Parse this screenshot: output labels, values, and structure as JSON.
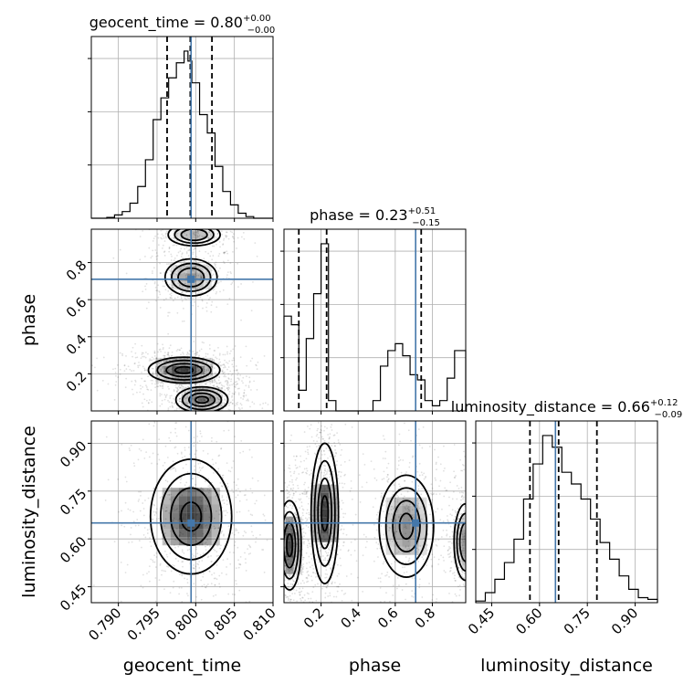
{
  "chart_data": {
    "type": "corner",
    "parameters": [
      "geocent_time",
      "phase",
      "luminosity_distance"
    ],
    "truths": {
      "geocent_time": 0.7994,
      "phase": 0.71,
      "luminosity_distance": 0.65
    },
    "titles": [
      {
        "param": "geocent_time",
        "main": "geocent_time = 0.80",
        "sup": "+0.00",
        "sub": "−0.00"
      },
      {
        "param": "phase",
        "main": "phase = 0.23",
        "sup": "+0.51",
        "sub": "−0.15"
      },
      {
        "param": "luminosity_distance",
        "main": "luminosity_distance = 0.66",
        "sup": "+0.12",
        "sub": "−0.09"
      }
    ],
    "axes": {
      "geocent_time": {
        "label": "geocent_time",
        "range": [
          0.7865,
          0.81
        ],
        "ticks": [
          0.79,
          0.795,
          0.8,
          0.805,
          0.81
        ],
        "tick_labels": [
          "0.790",
          "0.795",
          "0.800",
          "0.805",
          "0.810"
        ]
      },
      "phase": {
        "label": "phase",
        "range": [
          0.0,
          0.98
        ],
        "ticks": [
          0.2,
          0.4,
          0.6,
          0.8
        ],
        "tick_labels": [
          "0.2",
          "0.4",
          "0.6",
          "0.8"
        ]
      },
      "luminosity_distance": {
        "label": "luminosity_distance",
        "range": [
          0.4,
          0.97
        ],
        "ticks": [
          0.45,
          0.6,
          0.75,
          0.9
        ],
        "tick_labels": [
          "0.45",
          "0.60",
          "0.75",
          "0.90"
        ]
      }
    },
    "histograms": {
      "geocent_time": {
        "edges": [
          0.7865,
          0.7875,
          0.7885,
          0.7895,
          0.7905,
          0.7915,
          0.7925,
          0.7935,
          0.7945,
          0.7955,
          0.7965,
          0.7975,
          0.7985,
          0.799,
          0.7995,
          0.8005,
          0.8015,
          0.8025,
          0.8035,
          0.8045,
          0.8055,
          0.8065,
          0.8075,
          0.8085,
          0.81
        ],
        "counts": [
          0,
          0,
          0.005,
          0.02,
          0.04,
          0.09,
          0.19,
          0.35,
          0.59,
          0.72,
          0.84,
          0.93,
          1.0,
          0.94,
          0.81,
          0.62,
          0.51,
          0.31,
          0.16,
          0.08,
          0.03,
          0.01,
          0.0,
          0
        ],
        "quantiles": [
          0.7963,
          0.7993,
          0.8021
        ]
      },
      "phase": {
        "edges": [
          0.0,
          0.04,
          0.08,
          0.12,
          0.16,
          0.2,
          0.24,
          0.28,
          0.32,
          0.36,
          0.4,
          0.44,
          0.48,
          0.52,
          0.56,
          0.6,
          0.64,
          0.68,
          0.72,
          0.76,
          0.8,
          0.84,
          0.88,
          0.92,
          0.96,
          0.98
        ],
        "counts": [
          0.55,
          0.5,
          0.12,
          0.42,
          0.68,
          0.97,
          0.06,
          0.0,
          0.0,
          0.0,
          0.0,
          0.0,
          0.06,
          0.26,
          0.35,
          0.39,
          0.32,
          0.21,
          0.18,
          0.06,
          0.03,
          0.06,
          0.19,
          0.35,
          0.35
        ],
        "quantiles": [
          0.08,
          0.23,
          0.74
        ]
      },
      "luminosity_distance": {
        "edges": [
          0.4,
          0.43,
          0.46,
          0.49,
          0.52,
          0.55,
          0.58,
          0.61,
          0.64,
          0.67,
          0.7,
          0.73,
          0.76,
          0.79,
          0.82,
          0.85,
          0.88,
          0.91,
          0.94,
          0.97
        ],
        "counts": [
          0.01,
          0.06,
          0.14,
          0.24,
          0.38,
          0.62,
          0.83,
          1.0,
          0.93,
          0.78,
          0.71,
          0.62,
          0.5,
          0.36,
          0.26,
          0.16,
          0.08,
          0.03,
          0.02
        ],
        "quantiles": [
          0.57,
          0.66,
          0.78
        ]
      }
    },
    "density_blobs": [
      {
        "x": "geocent_time",
        "y": "phase",
        "cx": 0.7994,
        "cy": 0.72,
        "sx": 0.0016,
        "sy": 0.05,
        "w": 0.55
      },
      {
        "x": "geocent_time",
        "y": "phase",
        "cx": 0.7985,
        "cy": 0.22,
        "sx": 0.0022,
        "sy": 0.035,
        "w": 1.0
      },
      {
        "x": "geocent_time",
        "y": "phase",
        "cx": 0.8008,
        "cy": 0.06,
        "sx": 0.0016,
        "sy": 0.035,
        "w": 0.75
      },
      {
        "x": "geocent_time",
        "y": "phase",
        "cx": 0.7998,
        "cy": 0.95,
        "sx": 0.0016,
        "sy": 0.03,
        "w": 0.4
      },
      {
        "x": "geocent_time",
        "y": "luminosity_distance",
        "cx": 0.7994,
        "cy": 0.67,
        "sx": 0.0025,
        "sy": 0.09,
        "w": 1.0
      },
      {
        "x": "phase",
        "y": "luminosity_distance",
        "cx": 0.22,
        "cy": 0.68,
        "sx": 0.035,
        "sy": 0.11,
        "w": 1.0
      },
      {
        "x": "phase",
        "y": "luminosity_distance",
        "cx": 0.03,
        "cy": 0.58,
        "sx": 0.03,
        "sy": 0.07,
        "w": 0.95
      },
      {
        "x": "phase",
        "y": "luminosity_distance",
        "cx": 0.66,
        "cy": 0.64,
        "sx": 0.07,
        "sy": 0.08,
        "w": 0.6
      },
      {
        "x": "phase",
        "y": "luminosity_distance",
        "cx": 0.98,
        "cy": 0.59,
        "sx": 0.03,
        "sy": 0.06,
        "w": 0.55
      }
    ],
    "truth_color": "#4477aa",
    "grid": true
  }
}
